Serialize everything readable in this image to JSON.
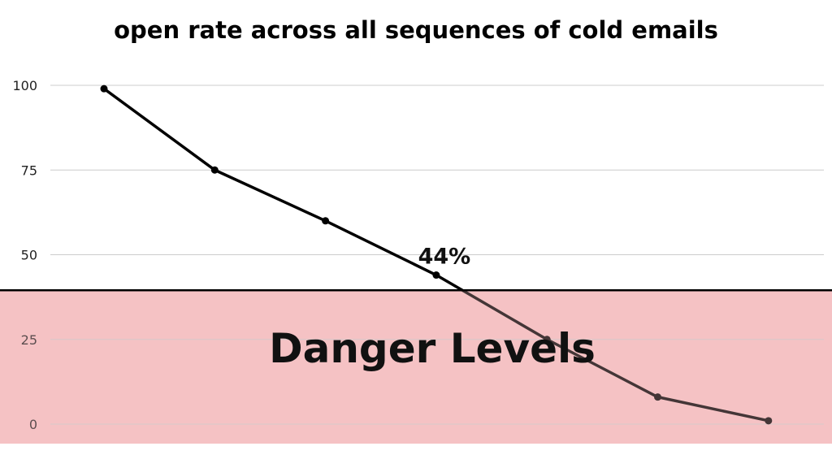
{
  "colors": {
    "line": "#000000",
    "danger_zone": "#f5c2c4",
    "threshold_line": "#000000",
    "grid": "#cccccc"
  },
  "chart_data": {
    "type": "line",
    "title": "open rate across all sequences of cold emails",
    "xlabel": "",
    "ylabel": "",
    "ylim": [
      0,
      100
    ],
    "yticks": [
      "0",
      "25",
      "50",
      "75",
      "100"
    ],
    "grid": true,
    "series": [
      {
        "values": [
          99,
          75,
          60,
          44,
          25,
          8,
          1
        ]
      }
    ],
    "annotations": [
      {
        "text": "44%",
        "point_index": 3
      }
    ],
    "danger_zone": {
      "label": "Danger Levels",
      "upper_value": 39.5
    }
  }
}
